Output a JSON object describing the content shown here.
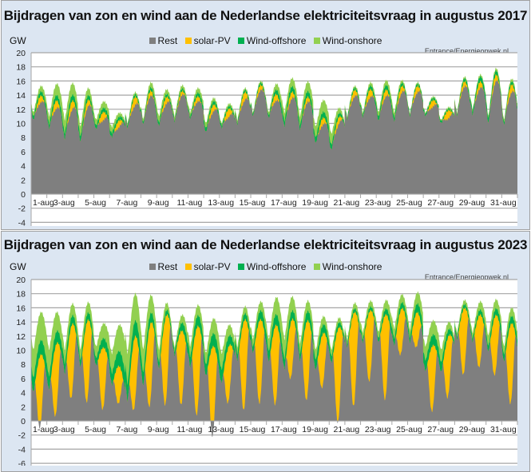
{
  "chart_data": [
    {
      "type": "area",
      "stacked": true,
      "title": "Bijdragen van zon en wind aan de Nederlandse elektriciteitsvraag in augustus 2017",
      "ylabel": "GW",
      "source": "Entrance/Energieopwek.nl",
      "ylim": [
        -4,
        20
      ],
      "y_ticks": [
        20,
        18,
        16,
        14,
        12,
        10,
        8,
        6,
        4,
        2,
        0,
        -2,
        -4
      ],
      "x_tick_labels": [
        "1-aug",
        "3-aug",
        "5-aug",
        "7-aug",
        "9-aug",
        "11-aug",
        "13-aug",
        "15-aug",
        "17-aug",
        "19-aug",
        "21-aug",
        "23-aug",
        "25-aug",
        "27-aug",
        "29-aug",
        "31-aug"
      ],
      "days": 31,
      "legend": [
        "Rest",
        "solar-PV",
        "Wind-offshore",
        "Wind-onshore"
      ],
      "legend_position": "top-center",
      "grid": true,
      "series_colors": {
        "Rest": "#7f7f7f",
        "solar-PV": "#ffc000",
        "Wind-offshore": "#00b050",
        "Wind-onshore": "#92d050"
      },
      "daily": {
        "demand_peak": [
          15.3,
          15.6,
          15.7,
          15.0,
          13.1,
          11.5,
          14.4,
          15.8,
          14.8,
          15.4,
          15.0,
          13.6,
          12.8,
          15.0,
          16.0,
          15.6,
          16.4,
          15.9,
          13.3,
          12.2,
          15.3,
          15.8,
          16.1,
          16.1,
          15.8,
          13.8,
          12.3,
          16.6,
          16.9,
          17.8,
          16.3
        ],
        "demand_trough": [
          11.5,
          11.0,
          10.5,
          9.5,
          10.5,
          9.5,
          10.0,
          10.5,
          11.0,
          11.0,
          11.5,
          10.0,
          10.0,
          10.5,
          11.5,
          11.5,
          11.5,
          11.0,
          9.5,
          8.5,
          11.0,
          11.5,
          11.5,
          11.5,
          11.5,
          11.5,
          10.5,
          11.5,
          12.0,
          11.0,
          10.5
        ],
        "solar_peak": [
          1.0,
          1.2,
          1.3,
          1.0,
          1.2,
          1.0,
          1.3,
          0.8,
          1.0,
          0.6,
          0.8,
          1.0,
          1.2,
          1.2,
          0.8,
          1.0,
          1.0,
          0.8,
          1.0,
          1.0,
          1.0,
          1.2,
          1.0,
          1.0,
          1.0,
          1.0,
          1.2,
          0.8,
          1.0,
          1.0,
          1.2
        ],
        "wind_offshore": [
          0.5,
          0.6,
          0.8,
          0.8,
          0.5,
          0.6,
          0.4,
          0.3,
          0.5,
          0.3,
          0.3,
          0.6,
          0.4,
          0.3,
          0.3,
          0.3,
          0.8,
          0.7,
          0.8,
          0.8,
          0.3,
          0.3,
          0.6,
          0.6,
          0.3,
          0.3,
          0.3,
          0.2,
          0.5,
          0.8,
          0.4
        ],
        "wind_onshore": [
          0.5,
          1.0,
          2.0,
          1.5,
          0.8,
          1.0,
          0.3,
          0.3,
          1.0,
          0.5,
          0.5,
          0.8,
          0.3,
          0.4,
          0.2,
          0.3,
          1.2,
          1.2,
          1.5,
          1.8,
          0.2,
          0.3,
          0.6,
          0.8,
          0.2,
          0.2,
          0.2,
          0.2,
          0.3,
          0.3,
          0.4
        ]
      }
    },
    {
      "type": "area",
      "stacked": true,
      "title": "Bijdragen van zon en wind aan de Nederlandse elektriciteitsvraag in augustus 2023",
      "ylabel": "GW",
      "source": "Entrance/Energieopwek.nl",
      "ylim": [
        -6,
        20
      ],
      "y_ticks": [
        20,
        18,
        16,
        14,
        12,
        10,
        8,
        6,
        4,
        2,
        0,
        -2,
        -4,
        -6
      ],
      "x_tick_labels": [
        "1-aug",
        "3-aug",
        "5-aug",
        "7-aug",
        "9-aug",
        "11-aug",
        "13-aug",
        "15-aug",
        "17-aug",
        "19-aug",
        "21-aug",
        "23-aug",
        "25-aug",
        "27-aug",
        "29-aug",
        "31-aug"
      ],
      "days": 31,
      "legend": [
        "Rest",
        "solar-PV",
        "Wind-offshore",
        "Wind-onshore"
      ],
      "legend_position": "top-center",
      "grid": true,
      "series_colors": {
        "Rest": "#7f7f7f",
        "solar-PV": "#ffc000",
        "Wind-offshore": "#00b050",
        "Wind-onshore": "#92d050"
      },
      "daily": {
        "demand_peak": [
          15.4,
          15.4,
          16.6,
          16.8,
          13.8,
          13.6,
          18.0,
          17.8,
          16.7,
          15.0,
          16.4,
          14.5,
          13.6,
          16.2,
          16.9,
          17.5,
          17.6,
          17.0,
          14.8,
          14.6,
          16.7,
          17.0,
          17.1,
          17.9,
          18.2,
          14.2,
          14.0,
          17.1,
          16.9,
          17.2,
          16.0
        ],
        "demand_trough": [
          10.0,
          10.0,
          10.0,
          10.0,
          10.5,
          9.5,
          9.5,
          10.0,
          10.0,
          10.5,
          10.5,
          9.5,
          9.5,
          10.5,
          11.5,
          11.5,
          11.5,
          11.0,
          10.0,
          10.0,
          11.5,
          12.5,
          12.5,
          13.0,
          13.0,
          10.5,
          10.0,
          12.5,
          12.5,
          12.0,
          10.5
        ],
        "solar_peak": [
          10.1,
          9.8,
          10.1,
          11.3,
          8.7,
          5.3,
          9.8,
          11.2,
          12.2,
          10.4,
          12.3,
          12.6,
          7.7,
          12.5,
          11.7,
          11.1,
          7.8,
          11.0,
          7.4,
          13.2,
          13.1,
          9.8,
          11.9,
          6.2,
          4.8,
          9.2,
          8.4,
          9.2,
          7.3,
          8.2,
          11.1
        ],
        "wind_offshore": [
          2.0,
          2.0,
          1.5,
          1.0,
          1.0,
          1.5,
          2.5,
          2.0,
          1.0,
          0.5,
          1.5,
          1.5,
          2.0,
          1.0,
          0.8,
          1.5,
          1.5,
          1.0,
          1.5,
          1.0,
          0.5,
          0.5,
          0.5,
          1.0,
          0.7,
          1.5,
          1.5,
          0.5,
          0.5,
          0.8,
          1.0
        ],
        "wind_onshore": [
          4.0,
          4.0,
          2.0,
          1.5,
          1.5,
          2.5,
          4.5,
          3.5,
          2.0,
          0.5,
          1.5,
          1.5,
          2.5,
          1.0,
          1.0,
          1.5,
          3.0,
          1.5,
          1.5,
          1.0,
          0.5,
          1.0,
          0.8,
          1.5,
          1.0,
          2.0,
          2.0,
          0.5,
          0.7,
          1.5,
          1.2
        ]
      }
    }
  ]
}
